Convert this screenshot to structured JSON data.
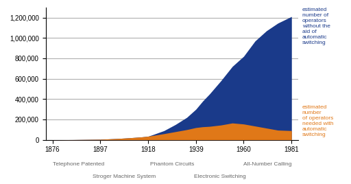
{
  "chart_data": {
    "type": "area",
    "stacked": false,
    "grid": "y",
    "x": [
      1876,
      1880,
      1885,
      1890,
      1897,
      1900,
      1905,
      1910,
      1915,
      1918,
      1920,
      1925,
      1930,
      1935,
      1939,
      1942,
      1945,
      1950,
      1955,
      1960,
      1965,
      1970,
      1975,
      1981
    ],
    "series": [
      {
        "name": "estimated\nnumber\nof operators\nneeded with\nautomatic\nswitching",
        "color": "#E07818",
        "values": [
          500,
          800,
          1500,
          3000,
          5000,
          8000,
          13000,
          20000,
          28000,
          35000,
          42000,
          60000,
          80000,
          100000,
          120000,
          128000,
          132000,
          145000,
          165000,
          155000,
          135000,
          115000,
          95000,
          90000
        ]
      },
      {
        "name": "estimated\nnumber of\noperators\nwithout the\naid of\nautomatic\nswitching",
        "color": "#1A3A8A",
        "values": [
          500,
          800,
          1500,
          3000,
          5000,
          8000,
          13000,
          20000,
          28000,
          35000,
          50000,
          90000,
          150000,
          220000,
          300000,
          380000,
          450000,
          580000,
          720000,
          820000,
          970000,
          1070000,
          1145000,
          1210000
        ]
      }
    ],
    "xlim": [
      1873,
      1984
    ],
    "xticks": [
      1876,
      1897,
      1918,
      1939,
      1960,
      1981
    ],
    "ylim": [
      0,
      1300000
    ],
    "yticks": [
      0,
      {
        "value": 200000,
        "label": "200,000"
      },
      {
        "value": 400000,
        "label": "400,000"
      },
      {
        "value": 600000,
        "label": "600,000"
      },
      {
        "value": 800000,
        "label": "800,000"
      },
      {
        "value": 1000000,
        "label": "1,000,000"
      },
      {
        "value": 1200000,
        "label": "1,200,000"
      }
    ],
    "annotations": [
      {
        "text": "Telephone Patented",
        "x": 1876
      },
      {
        "text": "Stroger Machine System",
        "x": [
          1897,
          1918
        ]
      },
      {
        "text": "Phantom Circuits",
        "x": [
          1918,
          1939
        ]
      },
      {
        "text": "Electronic Switching",
        "x": [
          1939,
          1960
        ]
      },
      {
        "text": "All-Number Calling",
        "x": [
          1960,
          1981
        ]
      }
    ]
  }
}
